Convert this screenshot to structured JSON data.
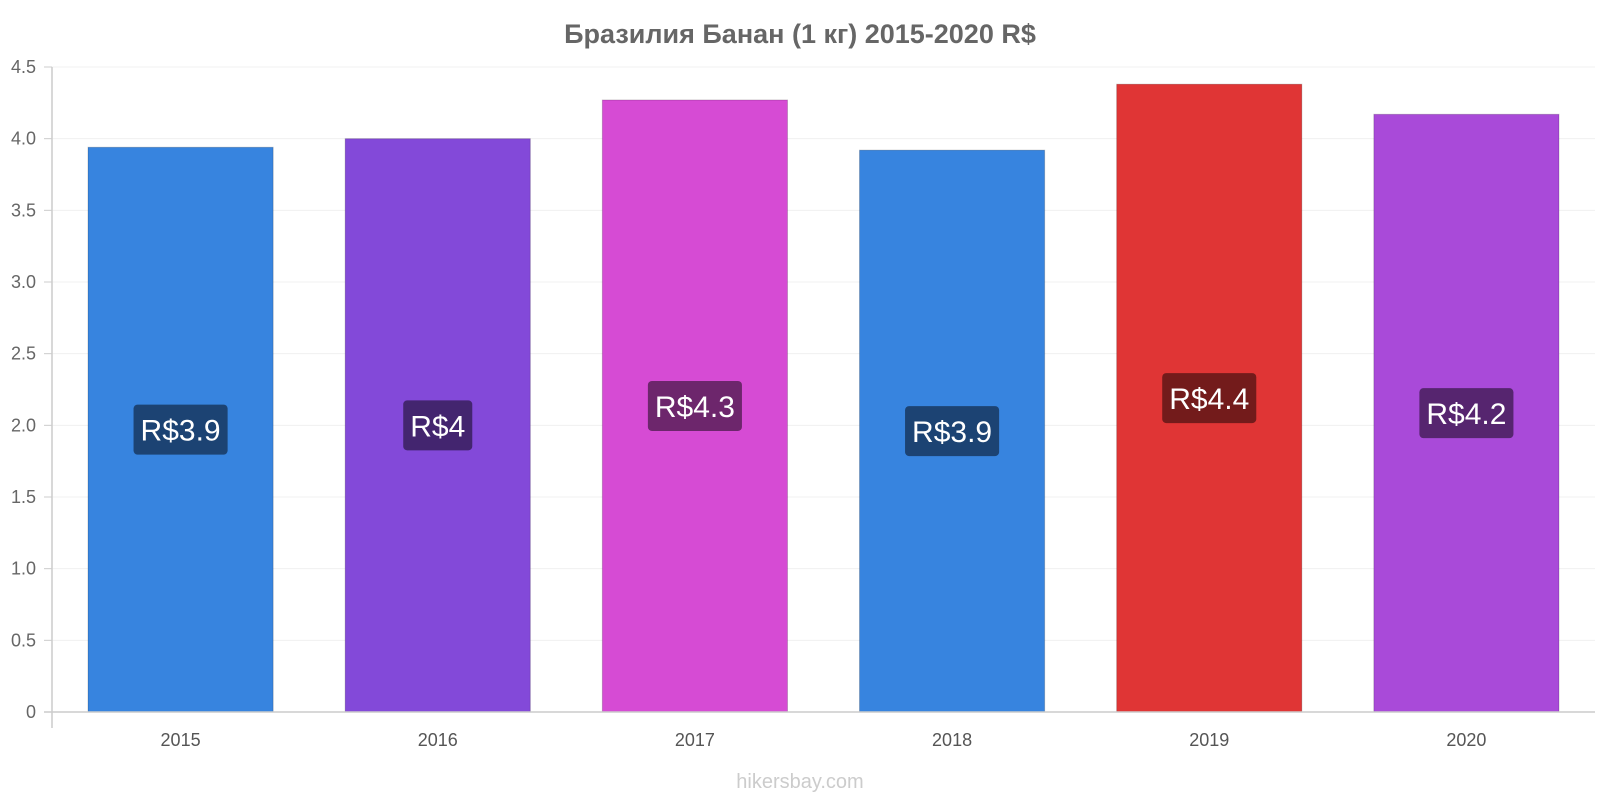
{
  "chart_data": {
    "type": "bar",
    "title": "Бразилия Банан (1 кг) 2015-2020 R$",
    "categories": [
      "2015",
      "2016",
      "2017",
      "2018",
      "2019",
      "2020"
    ],
    "values": [
      3.94,
      4.0,
      4.27,
      3.92,
      4.38,
      4.17
    ],
    "value_labels": [
      "R$3.9",
      "R$4",
      "R$4.3",
      "R$3.9",
      "R$4.4",
      "R$4.2"
    ],
    "ylim": [
      0,
      4.5
    ],
    "yticks": [
      "0",
      "0.5",
      "1.0",
      "1.5",
      "2.0",
      "2.5",
      "3.0",
      "3.5",
      "4.0",
      "4.5"
    ],
    "grid": true,
    "legend": "none",
    "colors": [
      "#3784df",
      "#8349d9",
      "#d64bd4",
      "#3784df",
      "#e03535",
      "#a94ad9"
    ],
    "label_bg_colors": [
      "#1c4373",
      "#43256f",
      "#6d266c",
      "#1c4373",
      "#731b1b",
      "#56256f"
    ]
  },
  "source": "hikersbay.com"
}
